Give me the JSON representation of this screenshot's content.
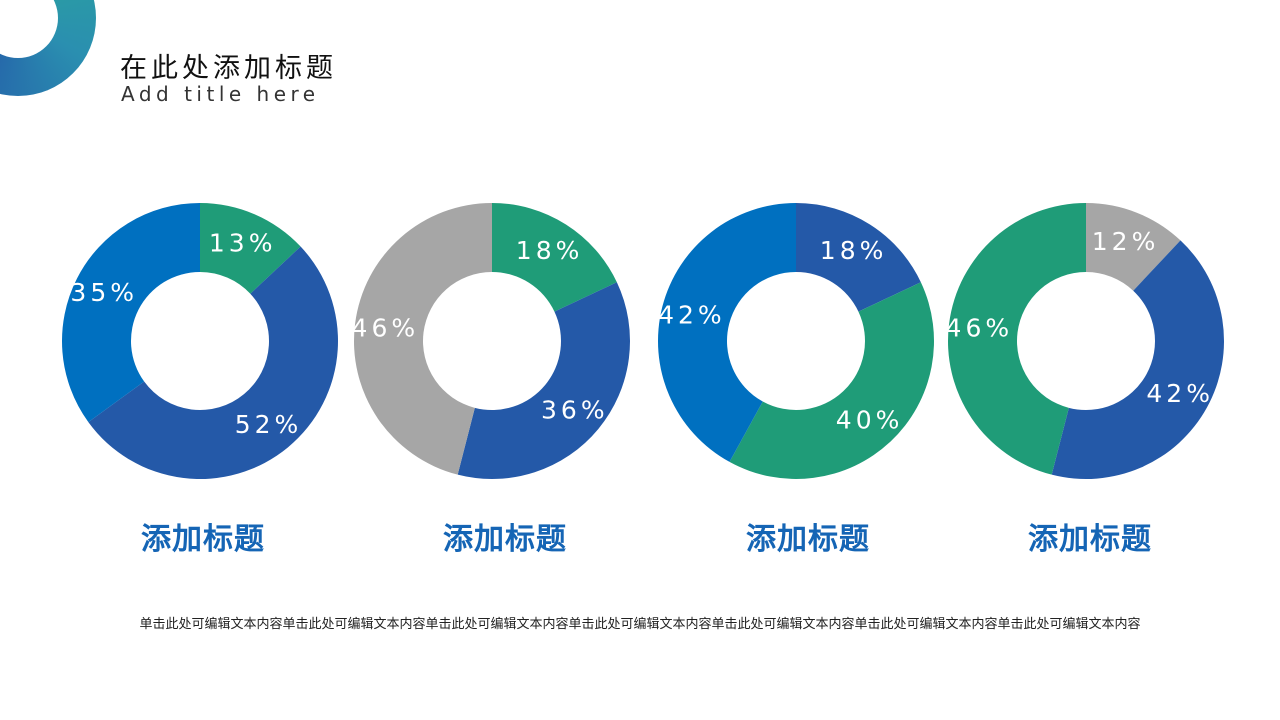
{
  "header": {
    "title": "在此处添加标题",
    "subtitle": "Add title here"
  },
  "colors": {
    "green": "#1f9c78",
    "dark_blue": "#2459a8",
    "blue": "#0070c0",
    "gray": "#a6a6a6"
  },
  "chart_data": [
    {
      "type": "pie",
      "donut": true,
      "values": [
        13,
        52,
        35
      ],
      "labels": [
        "13%",
        "52%",
        "35%"
      ],
      "colors": [
        "#1f9c78",
        "#2459a8",
        "#0070c0"
      ]
    },
    {
      "type": "pie",
      "donut": true,
      "values": [
        18,
        36,
        46
      ],
      "labels": [
        "18%",
        "36%",
        "46%"
      ],
      "colors": [
        "#1f9c78",
        "#2459a8",
        "#a6a6a6"
      ]
    },
    {
      "type": "pie",
      "donut": true,
      "values": [
        18,
        40,
        42
      ],
      "labels": [
        "18%",
        "40%",
        "42%"
      ],
      "colors": [
        "#2459a8",
        "#1f9c78",
        "#0070c0"
      ]
    },
    {
      "type": "pie",
      "donut": true,
      "values": [
        12,
        42,
        46
      ],
      "labels": [
        "12%",
        "42%",
        "46%"
      ],
      "colors": [
        "#a6a6a6",
        "#2459a8",
        "#1f9c78"
      ]
    }
  ],
  "chart_titles": [
    "添加标题",
    "添加标题",
    "添加标题",
    "添加标题"
  ],
  "body_text": "单击此处可编辑文本内容单击此处可编辑文本内容单击此处可编辑文本内容单击此处可编辑文本内容单击此处可编辑文本内容单击此处可编辑文本内容单击此处可编辑文本内容"
}
